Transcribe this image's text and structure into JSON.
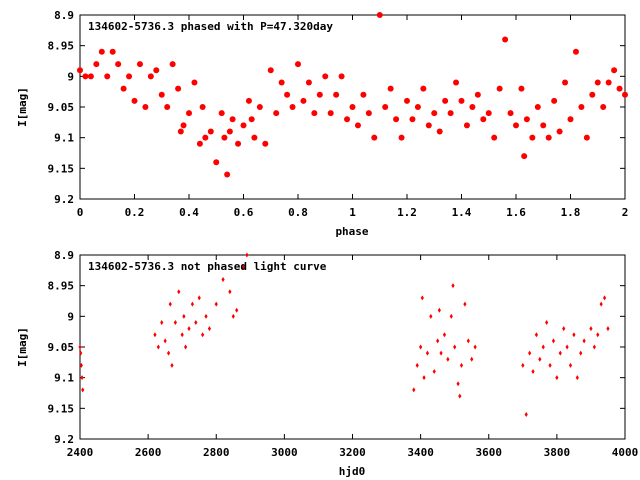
{
  "chart_data": [
    {
      "type": "scatter",
      "title": "134602-5736.3 phased with P=47.320day",
      "xlabel": "phase",
      "ylabel": "I[mag]",
      "xlim": [
        0,
        2
      ],
      "ylim": [
        9.2,
        8.9
      ],
      "y_inverted": true,
      "xticks": [
        "0",
        "0.2",
        "0.4",
        "0.6",
        "0.8",
        "1",
        "1.2",
        "1.4",
        "1.6",
        "1.8",
        "2"
      ],
      "yticks": [
        "8.9",
        "8.95",
        "9",
        "9.05",
        "9.1",
        "9.15",
        "9.2"
      ],
      "marker_color": "#ff0000",
      "points": [
        [
          0.0,
          8.99
        ],
        [
          0.02,
          9.0
        ],
        [
          0.04,
          9.0
        ],
        [
          0.06,
          8.98
        ],
        [
          0.08,
          8.96
        ],
        [
          0.1,
          9.0
        ],
        [
          0.12,
          8.96
        ],
        [
          0.14,
          8.98
        ],
        [
          0.16,
          9.02
        ],
        [
          0.18,
          9.0
        ],
        [
          0.2,
          9.04
        ],
        [
          0.22,
          8.98
        ],
        [
          0.24,
          9.05
        ],
        [
          0.26,
          9.0
        ],
        [
          0.28,
          8.99
        ],
        [
          0.3,
          9.03
        ],
        [
          0.32,
          9.05
        ],
        [
          0.34,
          8.98
        ],
        [
          0.36,
          9.02
        ],
        [
          0.37,
          9.09
        ],
        [
          0.38,
          9.08
        ],
        [
          0.4,
          9.06
        ],
        [
          0.42,
          9.01
        ],
        [
          0.44,
          9.11
        ],
        [
          0.45,
          9.05
        ],
        [
          0.46,
          9.1
        ],
        [
          0.48,
          9.09
        ],
        [
          0.5,
          9.14
        ],
        [
          0.52,
          9.06
        ],
        [
          0.53,
          9.1
        ],
        [
          0.54,
          9.16
        ],
        [
          0.55,
          9.09
        ],
        [
          0.56,
          9.07
        ],
        [
          0.58,
          9.11
        ],
        [
          0.6,
          9.08
        ],
        [
          0.62,
          9.04
        ],
        [
          0.63,
          9.07
        ],
        [
          0.64,
          9.1
        ],
        [
          0.66,
          9.05
        ],
        [
          0.68,
          9.11
        ],
        [
          0.7,
          8.99
        ],
        [
          0.72,
          9.06
        ],
        [
          0.74,
          9.01
        ],
        [
          0.76,
          9.03
        ],
        [
          0.78,
          9.05
        ],
        [
          0.8,
          8.98
        ],
        [
          0.82,
          9.04
        ],
        [
          0.84,
          9.01
        ],
        [
          0.86,
          9.06
        ],
        [
          0.88,
          9.03
        ],
        [
          0.9,
          9.0
        ],
        [
          0.92,
          9.06
        ],
        [
          0.94,
          9.03
        ],
        [
          0.96,
          9.0
        ],
        [
          0.98,
          9.07
        ],
        [
          1.0,
          9.05
        ],
        [
          1.02,
          9.08
        ],
        [
          1.04,
          9.03
        ],
        [
          1.06,
          9.06
        ],
        [
          1.08,
          9.1
        ],
        [
          1.1,
          8.9
        ],
        [
          1.12,
          9.05
        ],
        [
          1.14,
          9.02
        ],
        [
          1.16,
          9.07
        ],
        [
          1.18,
          9.1
        ],
        [
          1.2,
          9.04
        ],
        [
          1.22,
          9.07
        ],
        [
          1.24,
          9.05
        ],
        [
          1.26,
          9.02
        ],
        [
          1.28,
          9.08
        ],
        [
          1.3,
          9.06
        ],
        [
          1.32,
          9.09
        ],
        [
          1.34,
          9.04
        ],
        [
          1.36,
          9.06
        ],
        [
          1.38,
          9.01
        ],
        [
          1.4,
          9.04
        ],
        [
          1.42,
          9.08
        ],
        [
          1.44,
          9.05
        ],
        [
          1.46,
          9.03
        ],
        [
          1.48,
          9.07
        ],
        [
          1.5,
          9.06
        ],
        [
          1.52,
          9.1
        ],
        [
          1.54,
          9.02
        ],
        [
          1.56,
          8.94
        ],
        [
          1.58,
          9.06
        ],
        [
          1.6,
          9.08
        ],
        [
          1.62,
          9.02
        ],
        [
          1.63,
          9.13
        ],
        [
          1.64,
          9.07
        ],
        [
          1.66,
          9.1
        ],
        [
          1.68,
          9.05
        ],
        [
          1.7,
          9.08
        ],
        [
          1.72,
          9.1
        ],
        [
          1.74,
          9.04
        ],
        [
          1.76,
          9.09
        ],
        [
          1.78,
          9.01
        ],
        [
          1.8,
          9.07
        ],
        [
          1.82,
          8.96
        ],
        [
          1.84,
          9.05
        ],
        [
          1.86,
          9.1
        ],
        [
          1.88,
          9.03
        ],
        [
          1.9,
          9.01
        ],
        [
          1.92,
          9.05
        ],
        [
          1.94,
          9.01
        ],
        [
          1.96,
          8.99
        ],
        [
          1.98,
          9.02
        ],
        [
          2.0,
          9.03
        ]
      ]
    },
    {
      "type": "scatter",
      "title": "134602-5736.3 not phased light curve",
      "xlabel": "hjd0",
      "ylabel": "I[mag]",
      "xlim": [
        2400,
        4000
      ],
      "ylim": [
        9.2,
        8.9
      ],
      "y_inverted": true,
      "xticks": [
        "2400",
        "2600",
        "2800",
        "3000",
        "3200",
        "3400",
        "3600",
        "3800",
        "4000"
      ],
      "yticks": [
        "8.9",
        "8.95",
        "9",
        "9.05",
        "9.1",
        "9.15",
        "9.2"
      ],
      "marker_color": "#ff0000",
      "points": [
        [
          2400,
          9.05
        ],
        [
          2402,
          9.06
        ],
        [
          2404,
          9.08
        ],
        [
          2406,
          9.1
        ],
        [
          2408,
          9.12
        ],
        [
          2620,
          9.03
        ],
        [
          2630,
          9.05
        ],
        [
          2640,
          9.01
        ],
        [
          2650,
          9.04
        ],
        [
          2660,
          9.06
        ],
        [
          2665,
          8.98
        ],
        [
          2670,
          9.08
        ],
        [
          2680,
          9.01
        ],
        [
          2690,
          8.96
        ],
        [
          2700,
          9.03
        ],
        [
          2705,
          9.0
        ],
        [
          2710,
          9.05
        ],
        [
          2720,
          9.02
        ],
        [
          2730,
          8.98
        ],
        [
          2740,
          9.01
        ],
        [
          2750,
          8.97
        ],
        [
          2760,
          9.03
        ],
        [
          2770,
          9.0
        ],
        [
          2780,
          9.02
        ],
        [
          2800,
          8.98
        ],
        [
          2820,
          8.94
        ],
        [
          2840,
          8.96
        ],
        [
          2850,
          9.0
        ],
        [
          2860,
          8.99
        ],
        [
          2880,
          8.92
        ],
        [
          2890,
          8.9
        ],
        [
          3380,
          9.12
        ],
        [
          3390,
          9.08
        ],
        [
          3400,
          9.05
        ],
        [
          3405,
          8.97
        ],
        [
          3410,
          9.1
        ],
        [
          3420,
          9.06
        ],
        [
          3430,
          9.0
        ],
        [
          3440,
          9.09
        ],
        [
          3450,
          9.04
        ],
        [
          3455,
          8.99
        ],
        [
          3460,
          9.06
        ],
        [
          3470,
          9.03
        ],
        [
          3480,
          9.07
        ],
        [
          3490,
          9.0
        ],
        [
          3495,
          8.95
        ],
        [
          3500,
          9.05
        ],
        [
          3510,
          9.11
        ],
        [
          3515,
          9.13
        ],
        [
          3520,
          9.08
        ],
        [
          3530,
          8.98
        ],
        [
          3540,
          9.04
        ],
        [
          3550,
          9.07
        ],
        [
          3560,
          9.05
        ],
        [
          3700,
          9.08
        ],
        [
          3710,
          9.16
        ],
        [
          3720,
          9.06
        ],
        [
          3730,
          9.09
        ],
        [
          3740,
          9.03
        ],
        [
          3750,
          9.07
        ],
        [
          3760,
          9.05
        ],
        [
          3770,
          9.01
        ],
        [
          3780,
          9.08
        ],
        [
          3790,
          9.04
        ],
        [
          3800,
          9.1
        ],
        [
          3810,
          9.06
        ],
        [
          3820,
          9.02
        ],
        [
          3830,
          9.05
        ],
        [
          3840,
          9.08
        ],
        [
          3850,
          9.03
        ],
        [
          3860,
          9.1
        ],
        [
          3870,
          9.06
        ],
        [
          3880,
          9.04
        ],
        [
          3900,
          9.02
        ],
        [
          3910,
          9.05
        ],
        [
          3920,
          9.03
        ],
        [
          3930,
          8.98
        ],
        [
          3940,
          8.97
        ],
        [
          3950,
          9.02
        ]
      ]
    }
  ]
}
